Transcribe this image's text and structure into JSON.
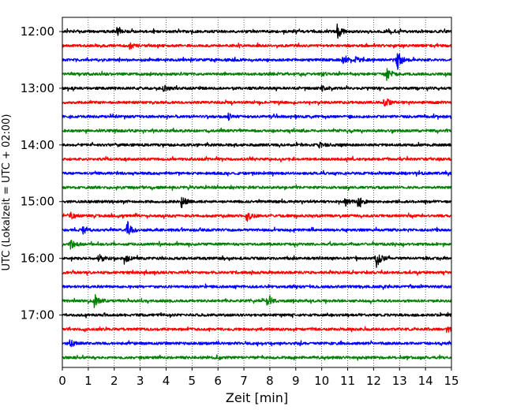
{
  "chart_data": {
    "type": "line",
    "title": "",
    "xlabel": "Zeit  [min]",
    "ylabel": "UTC (Lokalzeit = UTC + 02:00)",
    "xlim": [
      0,
      15
    ],
    "x_ticks": [
      "0",
      "1",
      "2",
      "3",
      "4",
      "5",
      "6",
      "7",
      "8",
      "9",
      "10",
      "11",
      "12",
      "13",
      "14",
      "15"
    ],
    "y_ticks": [
      "12:00",
      "13:00",
      "14:00",
      "15:00",
      "16:00",
      "17:00"
    ],
    "grid": "vertical dotted lines at each minute",
    "trace_colors": [
      "#000000",
      "#ff0000",
      "#0000ff",
      "#008000"
    ],
    "traces": [
      {
        "start": "12:00",
        "color": "#000000",
        "events": [
          {
            "t": 2.1,
            "amp": 9
          },
          {
            "t": 10.6,
            "amp": 10
          }
        ]
      },
      {
        "start": "12:15",
        "color": "#ff0000",
        "events": [
          {
            "t": 2.6,
            "amp": 4
          }
        ]
      },
      {
        "start": "12:30",
        "color": "#0000ff",
        "events": [
          {
            "t": 10.8,
            "amp": 5
          },
          {
            "t": 11.3,
            "amp": 4
          },
          {
            "t": 12.9,
            "amp": 13
          }
        ]
      },
      {
        "start": "12:45",
        "color": "#008000",
        "events": [
          {
            "t": 10.0,
            "amp": 3
          },
          {
            "t": 12.5,
            "amp": 8
          }
        ]
      },
      {
        "start": "13:00",
        "color": "#000000",
        "events": [
          {
            "t": 3.9,
            "amp": 5
          },
          {
            "t": 10.0,
            "amp": 3
          }
        ]
      },
      {
        "start": "13:15",
        "color": "#ff0000",
        "events": [
          {
            "t": 12.4,
            "amp": 8
          }
        ]
      },
      {
        "start": "13:30",
        "color": "#0000ff",
        "events": [
          {
            "t": 6.4,
            "amp": 4
          }
        ]
      },
      {
        "start": "13:45",
        "color": "#008000",
        "events": []
      },
      {
        "start": "14:00",
        "color": "#000000",
        "events": [
          {
            "t": 9.9,
            "amp": 3
          }
        ]
      },
      {
        "start": "14:15",
        "color": "#ff0000",
        "events": []
      },
      {
        "start": "14:30",
        "color": "#0000ff",
        "events": []
      },
      {
        "start": "14:45",
        "color": "#008000",
        "events": []
      },
      {
        "start": "15:00",
        "color": "#000000",
        "events": [
          {
            "t": 4.6,
            "amp": 8
          },
          {
            "t": 10.9,
            "amp": 5
          },
          {
            "t": 11.4,
            "amp": 7
          }
        ]
      },
      {
        "start": "15:15",
        "color": "#ff0000",
        "events": [
          {
            "t": 0.3,
            "amp": 4
          },
          {
            "t": 7.1,
            "amp": 7
          }
        ]
      },
      {
        "start": "15:30",
        "color": "#0000ff",
        "events": [
          {
            "t": 0.8,
            "amp": 6
          },
          {
            "t": 2.5,
            "amp": 12
          }
        ]
      },
      {
        "start": "15:45",
        "color": "#008000",
        "events": [
          {
            "t": 0.3,
            "amp": 6
          }
        ]
      },
      {
        "start": "16:00",
        "color": "#000000",
        "events": [
          {
            "t": 1.4,
            "amp": 6
          },
          {
            "t": 2.4,
            "amp": 6
          },
          {
            "t": 12.1,
            "amp": 14
          }
        ]
      },
      {
        "start": "16:15",
        "color": "#ff0000",
        "events": []
      },
      {
        "start": "16:30",
        "color": "#0000ff",
        "events": []
      },
      {
        "start": "16:45",
        "color": "#008000",
        "events": [
          {
            "t": 1.2,
            "amp": 9
          },
          {
            "t": 7.9,
            "amp": 9
          }
        ]
      },
      {
        "start": "17:00",
        "color": "#000000",
        "events": []
      },
      {
        "start": "17:15",
        "color": "#ff0000",
        "events": [
          {
            "t": 14.8,
            "amp": 4
          }
        ]
      },
      {
        "start": "17:30",
        "color": "#0000ff",
        "events": [
          {
            "t": 0.3,
            "amp": 6
          }
        ]
      },
      {
        "start": "17:45",
        "color": "#008000",
        "events": []
      }
    ]
  }
}
